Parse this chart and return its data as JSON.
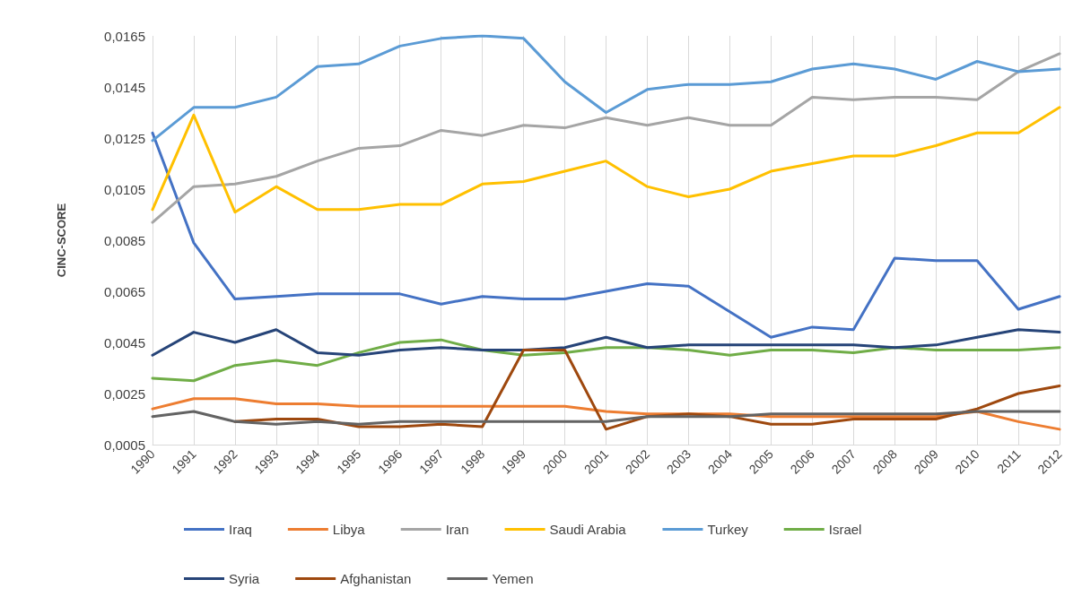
{
  "chart_data": {
    "type": "line",
    "ylabel": "CINC-SCORE",
    "categories": [
      "1990",
      "1991",
      "1992",
      "1993",
      "1994",
      "1995",
      "1996",
      "1997",
      "1998",
      "1999",
      "2000",
      "2001",
      "2002",
      "2003",
      "2004",
      "2005",
      "2006",
      "2007",
      "2008",
      "2009",
      "2010",
      "2011",
      "2012"
    ],
    "ylim": [
      0.0005,
      0.0165
    ],
    "yticks": [
      {
        "value": 0.0005,
        "label": "0,0005"
      },
      {
        "value": 0.0025,
        "label": "0,0025"
      },
      {
        "value": 0.0045,
        "label": "0,0045"
      },
      {
        "value": 0.0065,
        "label": "0,0065"
      },
      {
        "value": 0.0085,
        "label": "0,0085"
      },
      {
        "value": 0.0105,
        "label": "0,0105"
      },
      {
        "value": 0.0125,
        "label": "0,0125"
      },
      {
        "value": 0.0145,
        "label": "0,0145"
      },
      {
        "value": 0.0165,
        "label": "0,0165"
      }
    ],
    "grid": "x",
    "legend": "bottom",
    "marker": "none",
    "line_style": "solid",
    "series": [
      {
        "name": "Iraq",
        "color": "#4472c4",
        "values": [
          0.0127,
          0.0084,
          0.0062,
          0.0063,
          0.0064,
          0.0064,
          0.0064,
          0.006,
          0.0063,
          0.0062,
          0.0062,
          0.0065,
          0.0068,
          0.0067,
          0.0057,
          0.0047,
          0.0051,
          0.005,
          0.0078,
          0.0077,
          0.0077,
          0.0058,
          0.0063
        ]
      },
      {
        "name": "Libya",
        "color": "#ed7d31",
        "values": [
          0.0019,
          0.0023,
          0.0023,
          0.0021,
          0.0021,
          0.002,
          0.002,
          0.002,
          0.002,
          0.002,
          0.002,
          0.0018,
          0.0017,
          0.0017,
          0.0017,
          0.0016,
          0.0016,
          0.0016,
          0.0016,
          0.0016,
          0.0018,
          0.0014,
          0.0011
        ]
      },
      {
        "name": "Iran",
        "color": "#a5a5a5",
        "values": [
          0.0092,
          0.0106,
          0.0107,
          0.011,
          0.0116,
          0.0121,
          0.0122,
          0.0128,
          0.0126,
          0.013,
          0.0129,
          0.0133,
          0.013,
          0.0133,
          0.013,
          0.013,
          0.0141,
          0.014,
          0.0141,
          0.0141,
          0.014,
          0.0151,
          0.0158
        ]
      },
      {
        "name": "Saudi Arabia",
        "color": "#ffc000",
        "values": [
          0.0097,
          0.0134,
          0.0096,
          0.0106,
          0.0097,
          0.0097,
          0.0099,
          0.0099,
          0.0107,
          0.0108,
          0.0112,
          0.0116,
          0.0106,
          0.0102,
          0.0105,
          0.0112,
          0.0115,
          0.0118,
          0.0118,
          0.0122,
          0.0127,
          0.0127,
          0.0137
        ]
      },
      {
        "name": "Turkey",
        "color": "#5b9bd5",
        "values": [
          0.0124,
          0.0137,
          0.0137,
          0.0141,
          0.0153,
          0.0154,
          0.0161,
          0.0164,
          0.0165,
          0.0164,
          0.0147,
          0.0135,
          0.0144,
          0.0146,
          0.0146,
          0.0147,
          0.0152,
          0.0154,
          0.0152,
          0.0148,
          0.0155,
          0.0151,
          0.0152
        ]
      },
      {
        "name": "Israel",
        "color": "#70ad47",
        "values": [
          0.0031,
          0.003,
          0.0036,
          0.0038,
          0.0036,
          0.0041,
          0.0045,
          0.0046,
          0.0042,
          0.004,
          0.0041,
          0.0043,
          0.0043,
          0.0042,
          0.004,
          0.0042,
          0.0042,
          0.0041,
          0.0043,
          0.0042,
          0.0042,
          0.0042,
          0.0043
        ]
      },
      {
        "name": "Syria",
        "color": "#264478",
        "values": [
          0.004,
          0.0049,
          0.0045,
          0.005,
          0.0041,
          0.004,
          0.0042,
          0.0043,
          0.0042,
          0.0042,
          0.0043,
          0.0047,
          0.0043,
          0.0044,
          0.0044,
          0.0044,
          0.0044,
          0.0044,
          0.0043,
          0.0044,
          0.0047,
          0.005,
          0.0049
        ]
      },
      {
        "name": "Afghanistan",
        "color": "#9e480e",
        "values": [
          null,
          null,
          0.0014,
          0.0015,
          0.0015,
          0.0012,
          0.0012,
          0.0013,
          0.0012,
          0.0042,
          0.0042,
          0.0011,
          0.0016,
          0.0017,
          0.0016,
          0.0013,
          0.0013,
          0.0015,
          0.0015,
          0.0015,
          0.0019,
          0.0025,
          0.0028
        ]
      },
      {
        "name": "Yemen",
        "color": "#636363",
        "values": [
          0.0016,
          0.0018,
          0.0014,
          0.0013,
          0.0014,
          0.0013,
          0.0014,
          0.0014,
          0.0014,
          0.0014,
          0.0014,
          0.0014,
          0.0016,
          0.0016,
          0.0016,
          0.0017,
          0.0017,
          0.0017,
          0.0017,
          0.0017,
          0.0018,
          0.0018,
          0.0018
        ]
      }
    ]
  }
}
